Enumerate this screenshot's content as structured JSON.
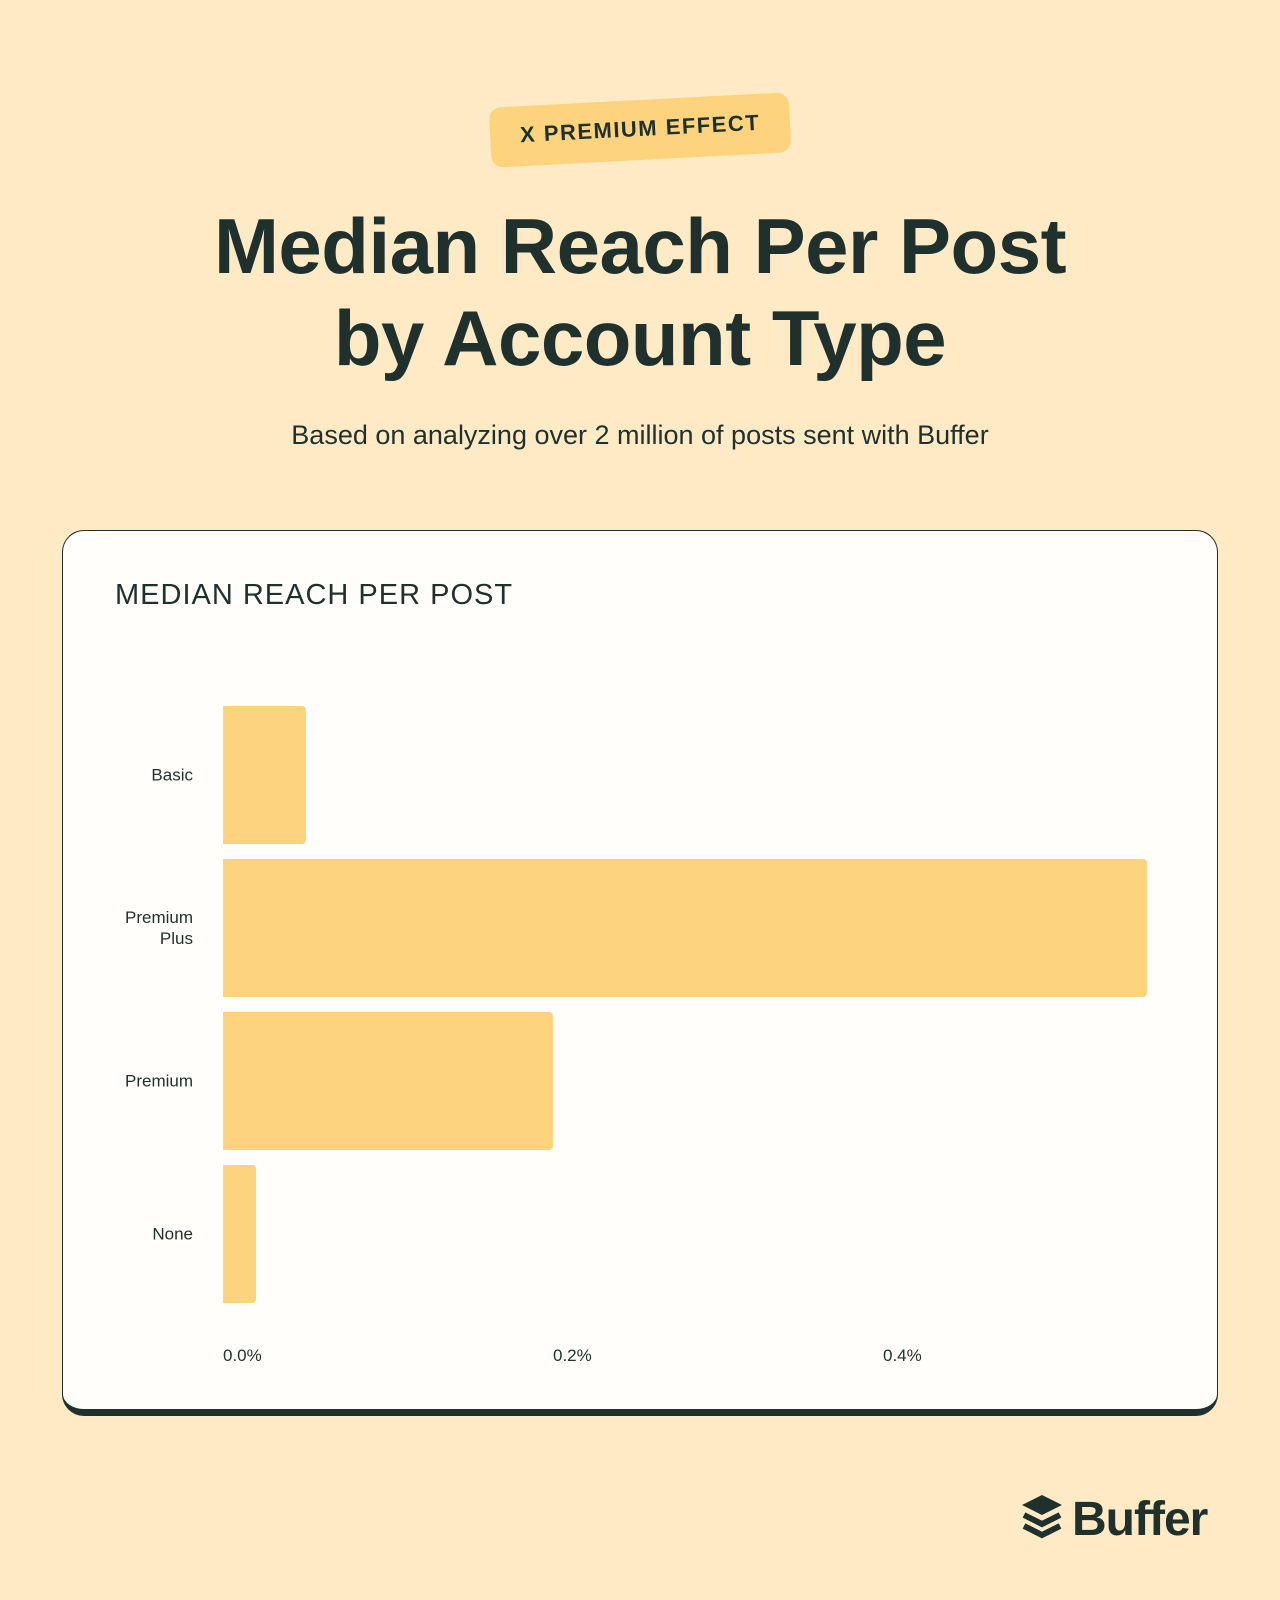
{
  "badge": {
    "label": "X PREMIUM EFFECT"
  },
  "header": {
    "title_line1": "Median Reach Per Post",
    "title_line2": "by Account Type",
    "subtitle": "Based on analyzing over 2 million of posts sent with Buffer"
  },
  "card": {
    "title": "MEDIAN REACH PER POST"
  },
  "colors": {
    "background": "#FFEAC6",
    "card": "#FFFEFA",
    "bar": "#FED37D",
    "text": "#1F302D"
  },
  "chart_data": {
    "type": "bar",
    "orientation": "horizontal",
    "title": "MEDIAN REACH PER POST",
    "categories": [
      "Basic",
      "Premium\nPlus",
      "Premium",
      "None"
    ],
    "category_names": [
      "Basic",
      "Premium Plus",
      "Premium",
      "None"
    ],
    "values": [
      0.05,
      0.56,
      0.2,
      0.02
    ],
    "unit": "%",
    "xlabel": "",
    "ylabel": "",
    "xlim": [
      0,
      0.6
    ],
    "xticks": [
      "0.0%",
      "0.2%",
      "0.4%"
    ],
    "xtick_values": [
      0,
      0.2,
      0.4
    ],
    "grid": false,
    "legend": null
  },
  "footer": {
    "brand": "Buffer"
  }
}
